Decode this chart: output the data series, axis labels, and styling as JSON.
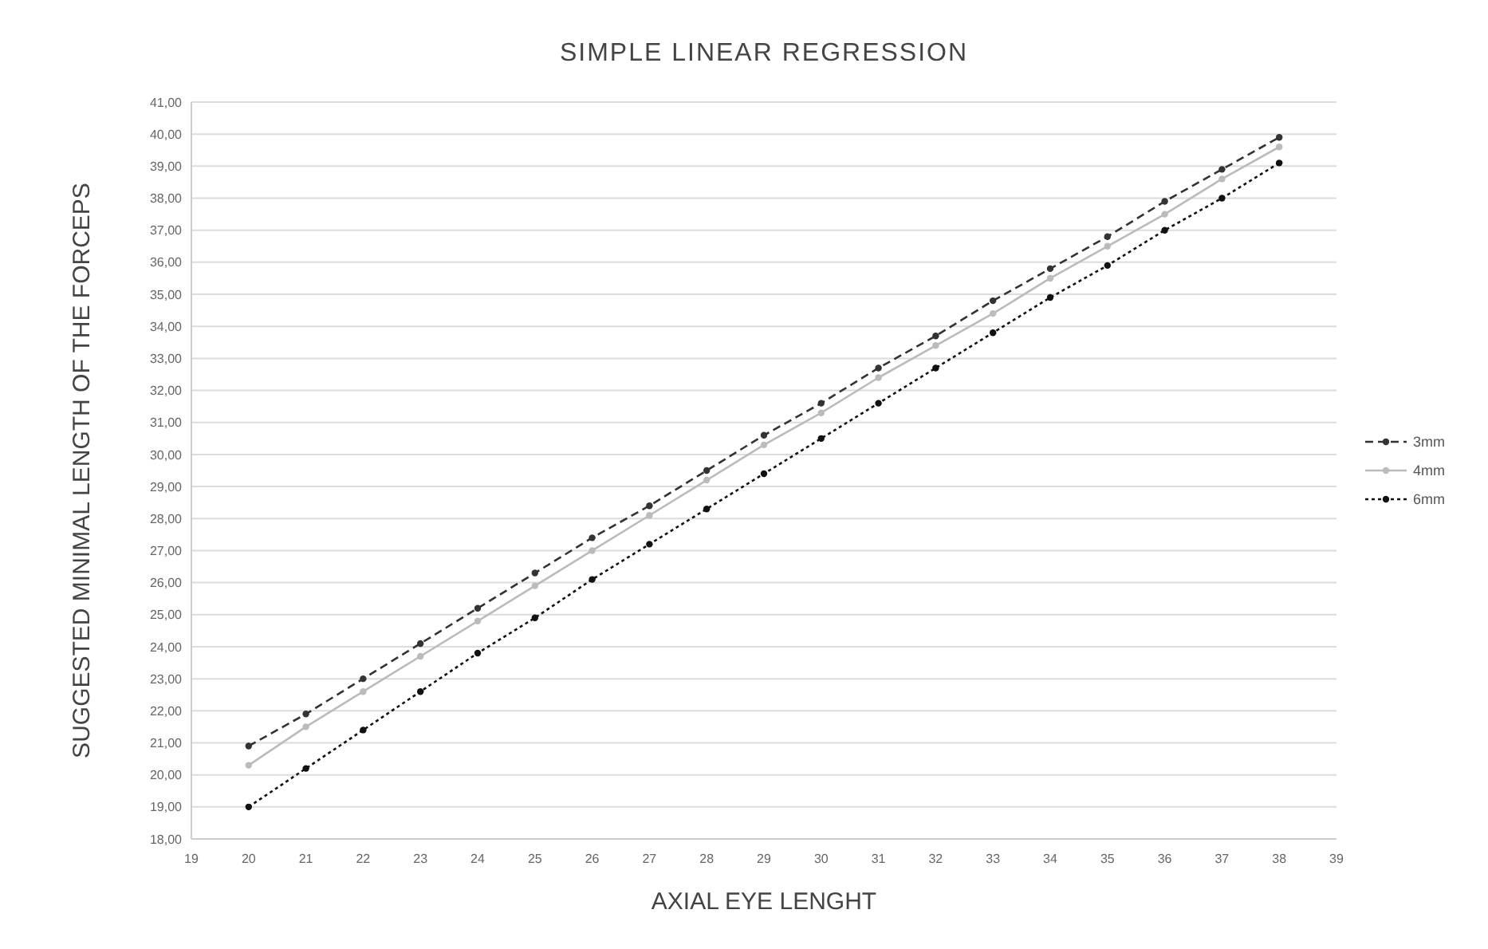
{
  "chart_data": {
    "type": "line",
    "title": "SIMPLE LINEAR REGRESSION",
    "xlabel": "AXIAL EYE LENGHT",
    "ylabel": "SUGGESTED MINIMAL LENGTH OF THE FORCEPS",
    "x": [
      20,
      21,
      22,
      23,
      24,
      25,
      26,
      27,
      28,
      29,
      30,
      31,
      32,
      33,
      34,
      35,
      36,
      37,
      38
    ],
    "series": [
      {
        "name": "3mm",
        "color": "#333333",
        "line_style": "dashed",
        "values": [
          20.9,
          21.9,
          23.0,
          24.1,
          25.2,
          26.3,
          27.4,
          28.4,
          29.5,
          30.6,
          31.6,
          32.7,
          33.7,
          34.8,
          35.8,
          36.8,
          37.9,
          38.9,
          39.9
        ]
      },
      {
        "name": "4mm",
        "color": "#bbbbbb",
        "line_style": "solid",
        "values": [
          20.3,
          21.5,
          22.6,
          23.7,
          24.8,
          25.9,
          27.0,
          28.1,
          29.2,
          30.3,
          31.3,
          32.4,
          33.4,
          34.4,
          35.5,
          36.5,
          37.5,
          38.6,
          39.6
        ]
      },
      {
        "name": "6mm",
        "color": "#111111",
        "line_style": "dotted",
        "values": [
          19.0,
          20.2,
          21.4,
          22.6,
          23.8,
          24.9,
          26.1,
          27.2,
          28.3,
          29.4,
          30.5,
          31.6,
          32.7,
          33.8,
          34.9,
          35.9,
          37.0,
          38.0,
          39.1
        ]
      }
    ],
    "xlim": [
      19,
      39
    ],
    "xticks": [
      19,
      20,
      21,
      22,
      23,
      24,
      25,
      26,
      27,
      28,
      29,
      30,
      31,
      32,
      33,
      34,
      35,
      36,
      37,
      38,
      39
    ],
    "ylim": [
      18,
      41
    ],
    "yticks": [
      {
        "value": 18,
        "label": "18,00"
      },
      {
        "value": 19,
        "label": "19,00"
      },
      {
        "value": 20,
        "label": "20,00"
      },
      {
        "value": 21,
        "label": "21,00"
      },
      {
        "value": 22,
        "label": "22,00"
      },
      {
        "value": 23,
        "label": "23,00"
      },
      {
        "value": 24,
        "label": "24,00"
      },
      {
        "value": 25,
        "label": "25,00"
      },
      {
        "value": 26,
        "label": "26,00"
      },
      {
        "value": 27,
        "label": "27,00"
      },
      {
        "value": 28,
        "label": "28,00"
      },
      {
        "value": 29,
        "label": "29,00"
      },
      {
        "value": 30,
        "label": "30,00"
      },
      {
        "value": 31,
        "label": "31,00"
      },
      {
        "value": 32,
        "label": "32,00"
      },
      {
        "value": 33,
        "label": "33,00"
      },
      {
        "value": 34,
        "label": "34,00"
      },
      {
        "value": 35,
        "label": "35,00"
      },
      {
        "value": 36,
        "label": "36,00"
      },
      {
        "value": 37,
        "label": "37,00"
      },
      {
        "value": 38,
        "label": "38,00"
      },
      {
        "value": 39,
        "label": "39,00"
      },
      {
        "value": 40,
        "label": "40,00"
      },
      {
        "value": 41,
        "label": "41,00"
      }
    ],
    "grid": "y",
    "legend": "right",
    "marker": "circle"
  }
}
